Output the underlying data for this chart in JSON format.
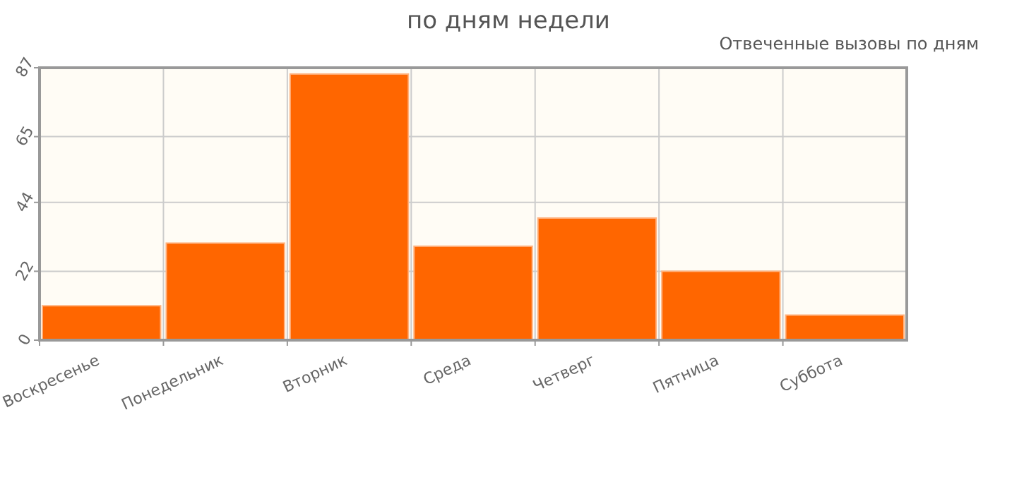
{
  "chart_data": {
    "type": "bar",
    "title": "по дням недели",
    "subtitle": "Отвеченные вызовы по дням",
    "categories": [
      "Воскресенье",
      "Понедельник",
      "Вторник",
      "Среда",
      "Четверг",
      "Пятница",
      "Суббота"
    ],
    "values": [
      11,
      31,
      85,
      30,
      39,
      22,
      8
    ],
    "color": "#ff6600",
    "ylim": [
      0,
      87
    ],
    "yticks": [
      0,
      22,
      44,
      65,
      87
    ],
    "grid": true
  }
}
